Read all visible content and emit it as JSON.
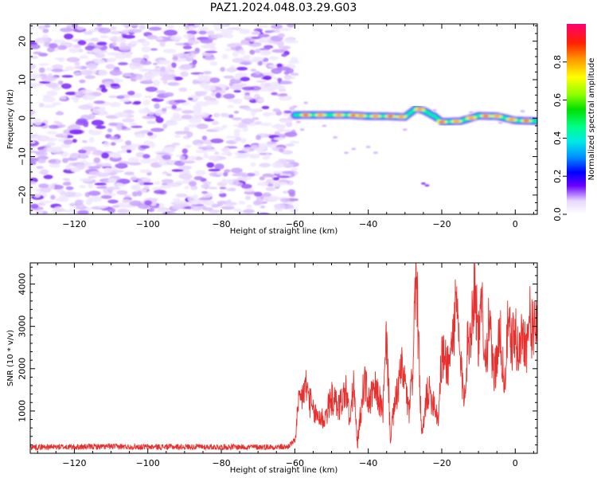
{
  "title": "PAZ1.2024.048.03.29.G03",
  "chart_data": [
    {
      "type": "heatmap",
      "xlabel": "Height of straight line (km)",
      "ylabel": "Frequency (Hz)",
      "xlim": [
        -132,
        6
      ],
      "ylim": [
        -25,
        24.5
      ],
      "xticks": [
        -120,
        -100,
        -80,
        -60,
        -40,
        -20,
        0
      ],
      "yticks": [
        -20,
        -10,
        0,
        10,
        20
      ],
      "colorbar": {
        "label": "Normalized spectral amplitude",
        "range": [
          0,
          1
        ],
        "ticks": [
          0.0,
          0.2,
          0.4,
          0.6,
          0.8
        ],
        "colormap": "gist_ncar-like"
      },
      "regions": [
        {
          "description_x": [
            -132,
            -60
          ],
          "content": "noise, amplitude ~0.05-0.3 across all frequencies"
        },
        {
          "description_x": [
            -60,
            6
          ],
          "content": "signal band near 0 Hz, amplitude up to 1.0"
        }
      ],
      "signal_track": {
        "x": [
          -60,
          -55,
          -50,
          -45,
          -40,
          -35,
          -30,
          -27,
          -25,
          -22,
          -20,
          -15,
          -10,
          -5,
          0,
          6
        ],
        "frequency": [
          0.8,
          0.8,
          0.8,
          0.8,
          0.5,
          0.5,
          0.3,
          2.5,
          2.0,
          0.5,
          -1.0,
          -0.8,
          0.6,
          0.5,
          -0.6,
          -0.8
        ]
      }
    },
    {
      "type": "line",
      "xlabel": "Height of straight line (km)",
      "ylabel": "SNR (10 * v/v)",
      "xlim": [
        -132,
        6
      ],
      "ylim": [
        0,
        4500
      ],
      "xticks": [
        -120,
        -100,
        -80,
        -60,
        -40,
        -20,
        0
      ],
      "yticks": [
        1000,
        2000,
        3000,
        4000
      ],
      "color": "#e8312e",
      "series": [
        {
          "x": [
            -132,
            -120,
            -110,
            -100,
            -90,
            -80,
            -70,
            -62,
            -60,
            -59,
            -57,
            -55,
            -52,
            -50,
            -48,
            -46,
            -45,
            -44,
            -43,
            -41,
            -40,
            -38,
            -36,
            -35,
            -34,
            -33,
            -31,
            -30,
            -29,
            -28,
            -27,
            -26.5,
            -25.5,
            -25,
            -24,
            -22,
            -21,
            -20,
            -18,
            -17,
            -16,
            -15,
            -14,
            -13,
            -12,
            -11,
            -10,
            -9,
            -8,
            -7,
            -6,
            -5,
            -4,
            -3,
            -2,
            -1,
            0,
            1,
            2,
            3,
            4,
            5,
            6
          ],
          "y": [
            150,
            150,
            160,
            150,
            155,
            150,
            150,
            150,
            300,
            1100,
            1600,
            950,
            800,
            1300,
            1100,
            1500,
            700,
            1650,
            200,
            1800,
            1200,
            1500,
            1000,
            2800,
            400,
            1000,
            2000,
            1700,
            900,
            1800,
            4500,
            3000,
            400,
            600,
            1500,
            1200,
            800,
            2300,
            2100,
            2800,
            3500,
            2200,
            1300,
            2500,
            3000,
            4100,
            2600,
            3500,
            2200,
            3200,
            1800,
            2300,
            2800,
            1500,
            3000,
            2600,
            2800,
            2300,
            2900,
            2500,
            3200,
            2800,
            3100
          ]
        }
      ]
    }
  ]
}
